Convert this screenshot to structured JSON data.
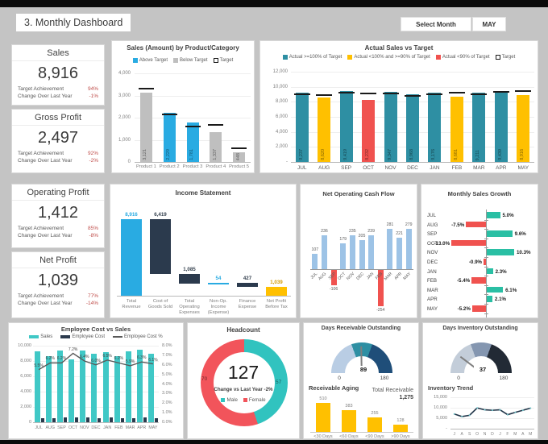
{
  "page": {
    "title": "3. Monthly Dashboard"
  },
  "controls": {
    "select_month_label": "Select Month",
    "selected_month": "MAY"
  },
  "labels": {
    "target_achievement": "Target Achievement",
    "change_over_last_year": "Change Over Last Year"
  },
  "kpis": [
    {
      "name": "Sales",
      "value": "8,916",
      "target_achievement": "94%",
      "change": "-1%"
    },
    {
      "name": "Gross Profit",
      "value": "2,497",
      "target_achievement": "92%",
      "change": "-2%"
    },
    {
      "name": "Operating Profit",
      "value": "1,412",
      "target_achievement": "85%",
      "change": "-8%"
    },
    {
      "name": "Net Profit",
      "value": "1,039",
      "target_achievement": "77%",
      "change": "-14%"
    }
  ],
  "colors": {
    "blue": "#29abe2",
    "gray_bar": "#bfbfbf",
    "teal": "#2e8fa3",
    "yellow": "#ffc000",
    "red": "#f0524f",
    "navy": "#2b3a4d",
    "light_blue": "#9dc3e6",
    "green": "#2abfa4",
    "emp_teal": "#40c8c6",
    "line_gray": "#595959",
    "kpi_red": "#c0504d",
    "target_black": "#1a1a1a",
    "donut_male": "#31c3bf",
    "donut_female": "#f2545b",
    "trend_line": "#1f3347",
    "gauge_receivable": [
      "#b9cde4",
      "#2e8fa3",
      "#1f4e79"
    ],
    "gauge_inventory": [
      "#c3cdd9",
      "#8496b0",
      "#222a35"
    ]
  },
  "chart_data": [
    {
      "id": "product_sales",
      "type": "bar",
      "title": "Sales (Amount) by Product/Category",
      "legend": [
        "Above Target",
        "Below Target",
        "Target"
      ],
      "categories": [
        "Product 1",
        "Product 2",
        "Product 3",
        "Product 4",
        "Product 5"
      ],
      "values": [
        3121,
        2229,
        1781,
        1337,
        448
      ],
      "value_labels": [
        "3,121",
        "2,229",
        "1,781",
        "1,337",
        "448"
      ],
      "targets": [
        3350,
        2200,
        1620,
        1700,
        640
      ],
      "above_target": [
        false,
        true,
        true,
        false,
        false
      ],
      "ylim": [
        0,
        4000
      ],
      "yticks": [
        "4,000",
        "3,000",
        "2,000",
        "1,000",
        "0"
      ]
    },
    {
      "id": "actual_vs_target",
      "type": "bar",
      "title": "Actual Sales vs Target",
      "legend": [
        "Actual >=100% of Target",
        "Actual <100% and >=90% of Target",
        "Actual <90% of Target",
        "Target"
      ],
      "categories": [
        "JUL",
        "AUG",
        "SEP",
        "OCT",
        "NOV",
        "DEC",
        "JAN",
        "FEB",
        "MAR",
        "APR",
        "MAY"
      ],
      "values": [
        9237,
        8620,
        9419,
        8232,
        9347,
        8968,
        9176,
        8681,
        9211,
        9439,
        8916
      ],
      "value_labels": [
        "9,237",
        "8,620",
        "9,419",
        "8,232",
        "9,347",
        "8,968",
        "9,176",
        "8,681",
        "9,211",
        "9,439",
        "8,916"
      ],
      "targets": [
        9100,
        9050,
        9350,
        9200,
        9250,
        8900,
        9100,
        9300,
        9150,
        9400,
        9550
      ],
      "status": [
        "ge100",
        "ge90",
        "ge100",
        "lt90",
        "ge100",
        "ge100",
        "ge100",
        "ge90",
        "ge100",
        "ge100",
        "ge90"
      ],
      "ylim": [
        0,
        12000
      ],
      "yticks": [
        "12,000",
        "10,000",
        "8,000",
        "6,000",
        "4,000",
        "2,000",
        "-"
      ]
    },
    {
      "id": "income_statement",
      "type": "waterfall",
      "title": "Income Statement",
      "items": [
        {
          "label": "Total Revenue",
          "value_label": "8,916",
          "start": 0,
          "end": 8916,
          "style": "blue"
        },
        {
          "label": "Cost of Goods Sold",
          "value_label": "6,419",
          "start": 2497,
          "end": 8916,
          "style": "navy"
        },
        {
          "label": "Total Operating Expenses",
          "value_label": "1,085",
          "start": 1412,
          "end": 2497,
          "style": "navy"
        },
        {
          "label": "Non-Op. Income (Expense)",
          "value_label": "54",
          "start": 1412,
          "end": 1466,
          "style": "thin-blue"
        },
        {
          "label": "Finance Expense",
          "value_label": "427",
          "start": 1039,
          "end": 1466,
          "style": "navy"
        },
        {
          "label": "Net Profit Before Tax",
          "value_label": "1,039",
          "start": 0,
          "end": 1039,
          "style": "gold"
        }
      ]
    },
    {
      "id": "cash_flow",
      "type": "bar",
      "title": "Net Operating Cash Flow",
      "categories": [
        "JUL",
        "AUG",
        "SEP",
        "OCT",
        "NOV",
        "DEC",
        "JAN",
        "FEB",
        "MAR",
        "APR",
        "MAY"
      ],
      "values": [
        107,
        236,
        -106,
        179,
        235,
        205,
        239,
        -254,
        281,
        221,
        279
      ],
      "value_labels": [
        "107",
        "236",
        "-106",
        "179",
        "235",
        "205",
        "239",
        "-254",
        "281",
        "221",
        "279"
      ]
    },
    {
      "id": "sales_growth",
      "type": "hbar",
      "title": "Monthly Sales Growth",
      "categories": [
        "JUL",
        "AUG",
        "SEP",
        "OCT",
        "NOV",
        "DEC",
        "JAN",
        "FEB",
        "MAR",
        "APR",
        "MAY"
      ],
      "values": [
        5.0,
        -7.5,
        9.6,
        -13.0,
        10.3,
        -0.9,
        2.3,
        -5.4,
        6.1,
        2.1,
        -5.2
      ],
      "value_labels": [
        "5.0%",
        "-7.5%",
        "9.6%",
        "-13.0%",
        "10.3%",
        "-0.9%",
        "2.3%",
        "-5.4%",
        "6.1%",
        "2.1%",
        "-5.2%"
      ]
    },
    {
      "id": "employee_cost",
      "type": "combo",
      "title": "Employee Cost vs Sales",
      "legend": [
        "Sales",
        "Employee Cost",
        "Employee Cost %"
      ],
      "categories": [
        "JUL",
        "AUG",
        "SEP",
        "OCT",
        "NOV",
        "DEC",
        "JAN",
        "FEB",
        "MAR",
        "APR",
        "MAY"
      ],
      "series": [
        {
          "name": "Sales",
          "values": [
            9237,
            8620,
            9419,
            8232,
            9347,
            8968,
            9176,
            8681,
            9211,
            9439,
            8916
          ]
        },
        {
          "name": "Employee Cost",
          "values": [
            508,
            534,
            584,
            593,
            598,
            538,
            596,
            538,
            543,
            595,
            544
          ]
        },
        {
          "name": "Employee Cost %",
          "values": [
            5.5,
            6.2,
            6.2,
            7.2,
            6.4,
            6.0,
            6.5,
            6.2,
            5.9,
            6.3,
            6.1
          ],
          "value_labels": [
            "5.5%",
            "6.2%",
            "6.2%",
            "7.2%",
            "6.4%",
            "6.0%",
            "6.5%",
            "6.2%",
            "5.9%",
            "6.3%",
            "6.1%"
          ]
        }
      ],
      "yticks_left": [
        "10,000",
        "8,000",
        "6,000",
        "4,000",
        "2,000",
        "0"
      ],
      "yticks_right": [
        "8.0%",
        "7.0%",
        "6.0%",
        "5.0%",
        "4.0%",
        "3.0%",
        "2.0%",
        "1.0%",
        "0.0%"
      ],
      "ylim_left": [
        0,
        10000
      ],
      "ylim_right": [
        0,
        8
      ]
    },
    {
      "id": "headcount",
      "type": "donut",
      "title": "Headcount",
      "total": "127",
      "change_label": "Change vs Last Year",
      "change_value": "-2%",
      "segments": [
        {
          "name": "Male",
          "value": 57
        },
        {
          "name": "Female",
          "value": 70
        }
      ]
    },
    {
      "id": "days_receivable",
      "type": "gauge",
      "title": "Days Receivable Outstanding",
      "value": 89,
      "min_label": "0",
      "max_label": "180",
      "min": 0,
      "max": 180
    },
    {
      "id": "receivable_aging",
      "type": "bar",
      "title": "Receivable Aging",
      "total_label": "Total Receivable",
      "total_value": "1,275",
      "categories": [
        "<30 Days",
        "<60 Days",
        "<90 Days",
        ">90 Days"
      ],
      "values": [
        510,
        383,
        255,
        128
      ],
      "value_labels": [
        "510",
        "383",
        "255",
        "128"
      ]
    },
    {
      "id": "days_inventory",
      "type": "gauge",
      "title": "Days Inventory Outstanding",
      "value": 37,
      "min_label": "0",
      "max_label": "180",
      "min": 0,
      "max": 180
    },
    {
      "id": "inventory_trend",
      "type": "line",
      "title": "Inventory Trend",
      "categories": [
        "J",
        "A",
        "S",
        "O",
        "N",
        "D",
        "J",
        "F",
        "M",
        "A",
        "M"
      ],
      "values": [
        7000,
        5800,
        6400,
        9900,
        9000,
        8800,
        9000,
        6700,
        7800,
        8800,
        9800
      ],
      "yticks": [
        "15,000",
        "10,000",
        "5,000",
        "-"
      ],
      "ylim": [
        0,
        15000
      ]
    }
  ]
}
